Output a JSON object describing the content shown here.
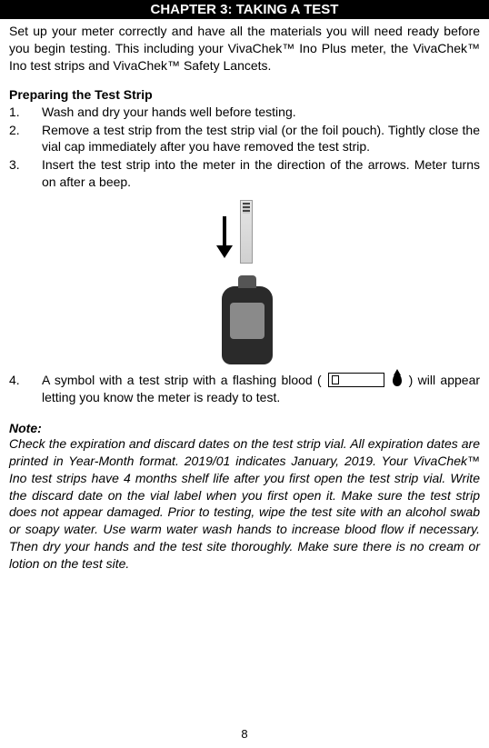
{
  "chapter": {
    "title": "CHAPTER 3: TAKING A TEST"
  },
  "intro": "Set up your meter correctly and have all the materials you will need ready before you begin testing. This including your VivaChek™ Ino Plus meter, the VivaChek™ Ino test strips and VivaChek™ Safety Lancets.",
  "section1": {
    "title": "Preparing the Test Strip",
    "steps": [
      {
        "n": "1.",
        "t": "Wash and dry your hands well before testing."
      },
      {
        "n": "2.",
        "t": "Remove a test strip from the test strip vial (or the foil pouch). Tightly close the vial cap immediately after you have removed the test strip."
      },
      {
        "n": "3.",
        "t": "Insert the test strip into the meter in the direction of the arrows. Meter turns on after a beep."
      }
    ],
    "step4": {
      "n": "4.",
      "pre": "A symbol with a test strip with a flashing blood (",
      "post": ") will appear letting you know the meter is ready to test."
    }
  },
  "note": {
    "title": "Note:",
    "body": "Check the expiration and discard dates on the test strip vial. All expiration dates are printed in Year-Month format. 2019/01 indicates January, 2019. Your VivaChek™ Ino test strips have 4 months shelf life after you first open the test strip vial. Write the discard date on the vial label when you first open it. Make sure the test strip does not appear damaged. Prior to testing, wipe the test site with an alcohol swab or soapy water. Use warm water wash hands to increase blood flow if necessary. Then dry your hands and the test site thoroughly. Make sure there is no cream or lotion on the test site."
  },
  "page": "8"
}
